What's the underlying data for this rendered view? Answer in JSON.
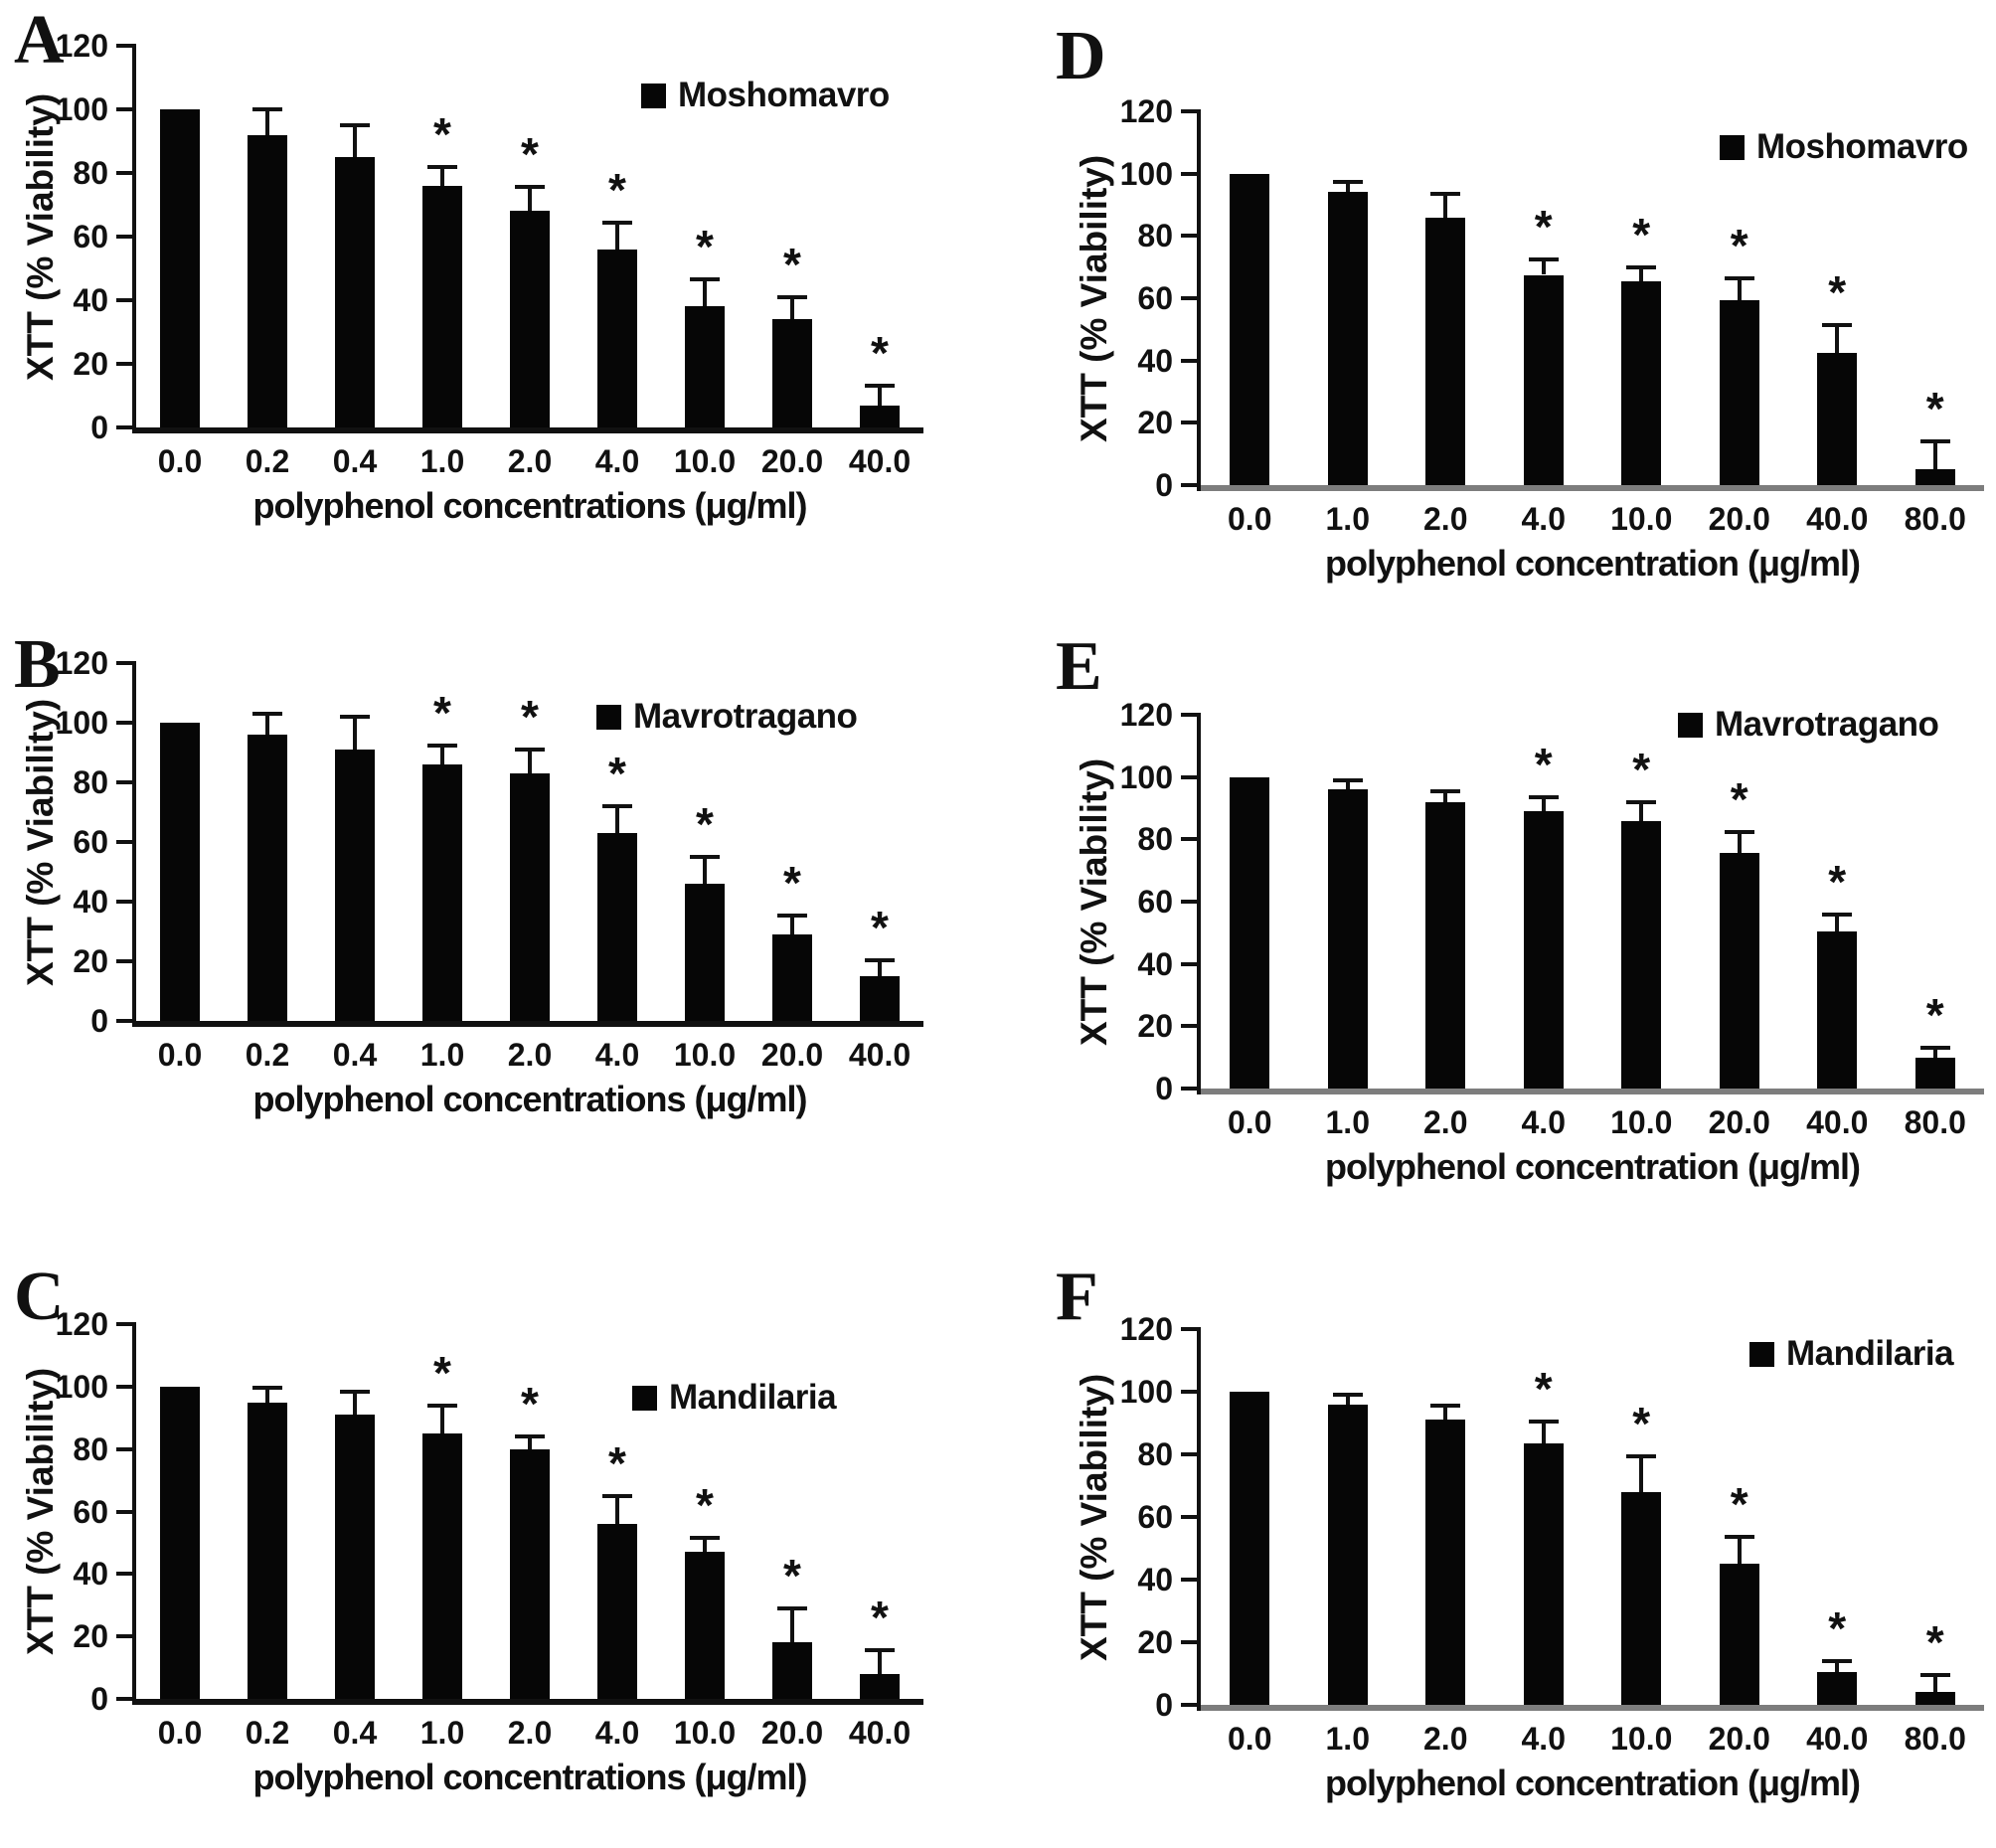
{
  "figure": {
    "background": "#ffffff",
    "bar_color": "#060606",
    "axis_color": "#111111",
    "right_baseline_color": "#7d7d7d",
    "text_color": "#111111",
    "significance_marker": "*",
    "legend_swatch": "black-square-icon"
  },
  "chart_data": [
    {
      "panel": "A",
      "type": "bar",
      "legend": "Moshomavro",
      "legend_position": "top-right",
      "xlabel": "polyphenol concentrations (μg/ml)",
      "ylabel": "XTT (% Viability)",
      "ylim": [
        0,
        120
      ],
      "yticks": [
        0,
        20,
        40,
        60,
        80,
        100,
        120
      ],
      "grid": false,
      "categories": [
        "0.0",
        "0.2",
        "0.4",
        "1.0",
        "2.0",
        "4.0",
        "10.0",
        "20.0",
        "40.0"
      ],
      "values": [
        100,
        92,
        85,
        76,
        68,
        56,
        38,
        34,
        7
      ],
      "errors": [
        0,
        8,
        10,
        6,
        7.5,
        8.5,
        8.5,
        7,
        6
      ],
      "significant": [
        false,
        false,
        false,
        true,
        true,
        true,
        true,
        true,
        true
      ]
    },
    {
      "panel": "B",
      "type": "bar",
      "legend": "Mavrotragano",
      "legend_position": "top-right",
      "xlabel": "polyphenol concentrations (μg/ml)",
      "ylabel": "XTT (% Viability)",
      "ylim": [
        0,
        120
      ],
      "yticks": [
        0,
        20,
        40,
        60,
        80,
        100,
        120
      ],
      "grid": false,
      "categories": [
        "0.0",
        "0.2",
        "0.4",
        "1.0",
        "2.0",
        "4.0",
        "10.0",
        "20.0",
        "40.0"
      ],
      "values": [
        100,
        96,
        91,
        86,
        83,
        63,
        46,
        29,
        15
      ],
      "errors": [
        0,
        7,
        11,
        6.5,
        8,
        9,
        9,
        6.5,
        5.5
      ],
      "significant": [
        false,
        false,
        false,
        true,
        true,
        true,
        true,
        true,
        true
      ]
    },
    {
      "panel": "C",
      "type": "bar",
      "legend": "Mandilaria",
      "legend_position": "top-right",
      "xlabel": "polyphenol concentrations (μg/ml)",
      "ylabel": "XTT (% Viability)",
      "ylim": [
        0,
        120
      ],
      "yticks": [
        0,
        20,
        40,
        60,
        80,
        100,
        120
      ],
      "grid": false,
      "categories": [
        "0.0",
        "0.2",
        "0.4",
        "1.0",
        "2.0",
        "4.0",
        "10.0",
        "20.0",
        "40.0"
      ],
      "values": [
        100,
        95,
        91,
        85,
        80,
        56,
        47,
        18,
        8
      ],
      "errors": [
        0,
        4.5,
        7.5,
        9,
        4,
        9,
        4.5,
        11,
        7.5
      ],
      "significant": [
        false,
        false,
        false,
        true,
        true,
        true,
        true,
        true,
        true
      ]
    },
    {
      "panel": "D",
      "type": "bar",
      "legend": "Moshomavro",
      "legend_position": "top-right",
      "xlabel": "polyphenol concentration (μg/ml)",
      "ylabel": "XTT (% Viability)",
      "ylim": [
        0,
        120
      ],
      "yticks": [
        0,
        20,
        40,
        60,
        80,
        100,
        120
      ],
      "grid": false,
      "categories": [
        "0.0",
        "1.0",
        "2.0",
        "4.0",
        "10.0",
        "20.0",
        "40.0",
        "80.0"
      ],
      "values": [
        100,
        94,
        86,
        67.5,
        65.5,
        59.5,
        42.5,
        5
      ],
      "errors": [
        0,
        3.5,
        7.5,
        5,
        4.5,
        7,
        9,
        9
      ],
      "significant": [
        false,
        false,
        false,
        true,
        true,
        true,
        true,
        true
      ]
    },
    {
      "panel": "E",
      "type": "bar",
      "legend": "Mavrotragano",
      "legend_position": "top-right",
      "xlabel": "polyphenol concentration (μg/ml)",
      "ylabel": "XTT (% Viability)",
      "ylim": [
        0,
        120
      ],
      "yticks": [
        0,
        20,
        40,
        60,
        80,
        100,
        120
      ],
      "grid": false,
      "categories": [
        "0.0",
        "1.0",
        "2.0",
        "4.0",
        "10.0",
        "20.0",
        "40.0",
        "80.0"
      ],
      "values": [
        100,
        96,
        92,
        89,
        86,
        75.5,
        50.5,
        10
      ],
      "errors": [
        0,
        3,
        3.5,
        4.5,
        6,
        7,
        5.5,
        3
      ],
      "significant": [
        false,
        false,
        false,
        true,
        true,
        true,
        true,
        true
      ]
    },
    {
      "panel": "F",
      "type": "bar",
      "legend": "Mandilaria",
      "legend_position": "top-right",
      "xlabel": "polyphenol concentration (μg/ml)",
      "ylabel": "XTT (% Viability)",
      "ylim": [
        0,
        120
      ],
      "yticks": [
        0,
        20,
        40,
        60,
        80,
        100,
        120
      ],
      "grid": false,
      "categories": [
        "0.0",
        "1.0",
        "2.0",
        "4.0",
        "10.0",
        "20.0",
        "40.0",
        "80.0"
      ],
      "values": [
        100,
        96,
        91,
        83.5,
        68,
        45,
        10.5,
        4
      ],
      "errors": [
        0,
        3,
        4.5,
        7,
        11.5,
        8.5,
        3.5,
        5.5
      ],
      "significant": [
        false,
        false,
        false,
        true,
        true,
        true,
        true,
        true
      ]
    }
  ]
}
